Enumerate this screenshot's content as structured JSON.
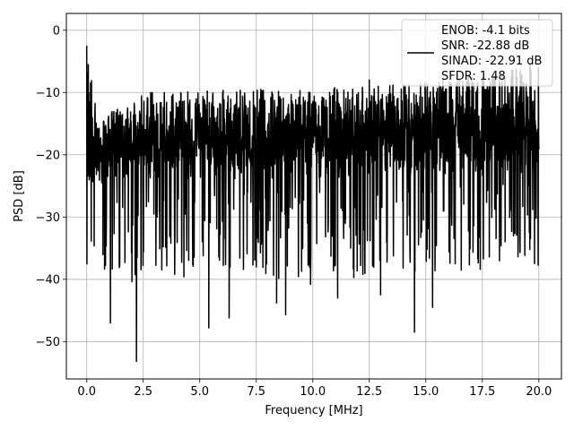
{
  "chart_data": {
    "type": "line",
    "title": "",
    "xlabel": "Frequency [MHz]",
    "ylabel": "PSD [dB]",
    "xlim": [
      -0.9,
      21.0
    ],
    "ylim": [
      -56,
      2.7
    ],
    "xticks": [
      0.0,
      2.5,
      5.0,
      7.5,
      10.0,
      12.5,
      15.0,
      17.5,
      20.0
    ],
    "xtick_labels": [
      "0.0",
      "2.5",
      "5.0",
      "7.5",
      "10.0",
      "12.5",
      "15.0",
      "17.5",
      "20.0"
    ],
    "yticks": [
      0,
      -10,
      -20,
      -30,
      -40,
      -50
    ],
    "ytick_labels": [
      "0",
      "−10",
      "−20",
      "−30",
      "−40",
      "−50"
    ],
    "grid": true,
    "legend_position": "top-right",
    "legend_entries": [
      "ENOB: -4.1 bits",
      "SNR: -22.88 dB",
      "SINAD: -22.91 dB",
      "SFDR: 1.48"
    ],
    "line_color": "#000000",
    "series": [
      {
        "x_range": [
          0.0,
          20.0
        ],
        "points": 2000,
        "noise_floor_trend": [
          [
            0.0,
            -22.0
          ],
          [
            2.5,
            -20.0
          ],
          [
            10.0,
            -20.0
          ],
          [
            17.5,
            -19.0
          ],
          [
            20.0,
            -18.0
          ]
        ],
        "peak_envelope_trend": [
          [
            0.0,
            -2.5
          ],
          [
            0.5,
            -14.0
          ],
          [
            2.5,
            -10.0
          ],
          [
            12.5,
            -9.0
          ],
          [
            17.5,
            -7.0
          ],
          [
            20.0,
            -5.0
          ]
        ],
        "notable_points": [
          {
            "x": 0.0,
            "y": -2.5
          },
          {
            "x": 0.02,
            "y": -7.0
          },
          {
            "x": 2.2,
            "y": -53.2
          },
          {
            "x": 1.05,
            "y": -47.0
          },
          {
            "x": 5.4,
            "y": -47.8
          },
          {
            "x": 6.3,
            "y": -46.2
          },
          {
            "x": 14.5,
            "y": -48.5
          },
          {
            "x": 9.9,
            "y": -40.8
          },
          {
            "x": 11.1,
            "y": -43.0
          },
          {
            "x": 15.3,
            "y": -44.5
          },
          {
            "x": 16.3,
            "y": -37.5
          },
          {
            "x": 12.3,
            "y": -35.0
          },
          {
            "x": 13.0,
            "y": -42.5
          },
          {
            "x": 7.5,
            "y": -38.0
          },
          {
            "x": 8.4,
            "y": -43.8
          },
          {
            "x": 8.8,
            "y": -45.7
          },
          {
            "x": 4.3,
            "y": -39.6
          },
          {
            "x": 12.5,
            "y": -8.0
          },
          {
            "x": 17.5,
            "y": -7.5
          }
        ]
      }
    ]
  }
}
